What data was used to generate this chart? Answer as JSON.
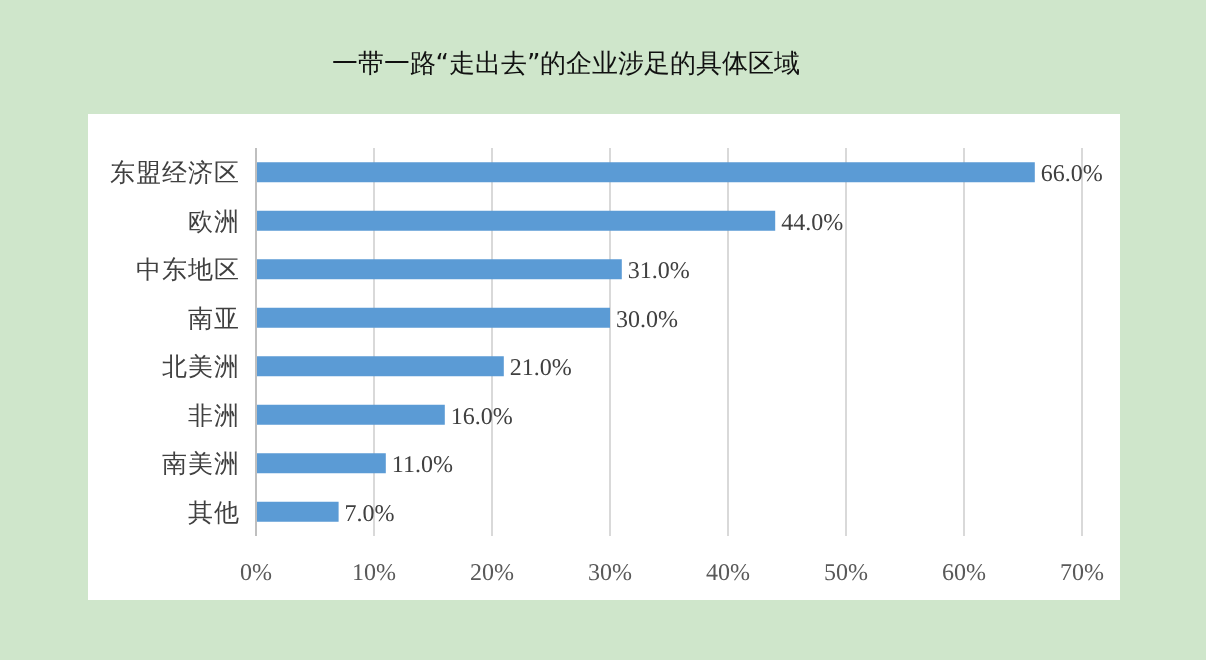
{
  "chart_data": {
    "type": "bar",
    "orientation": "horizontal",
    "title": "一带一路“走出去”的企业涉足的具体区域",
    "categories": [
      "东盟经济区",
      "欧洲",
      "中东地区",
      "南亚",
      "北美洲",
      "非洲",
      "南美洲",
      "其他"
    ],
    "values": [
      66,
      44,
      31,
      30,
      21,
      16,
      11,
      7
    ],
    "value_labels": [
      "66.0%",
      "44.0%",
      "31.0%",
      "30.0%",
      "21.0%",
      "16.0%",
      "11.0%",
      "7.0%"
    ],
    "color": "#5b9bd5",
    "xlim": [
      0,
      70
    ],
    "xticks": [
      {
        "value": 0,
        "label": "0%"
      },
      {
        "value": 10,
        "label": "10%"
      },
      {
        "value": 20,
        "label": "20%"
      },
      {
        "value": 30,
        "label": "30%"
      },
      {
        "value": 40,
        "label": "40%"
      },
      {
        "value": 50,
        "label": "50%"
      },
      {
        "value": 60,
        "label": "60%"
      },
      {
        "value": 70,
        "label": "70%"
      }
    ],
    "grid": "x"
  }
}
